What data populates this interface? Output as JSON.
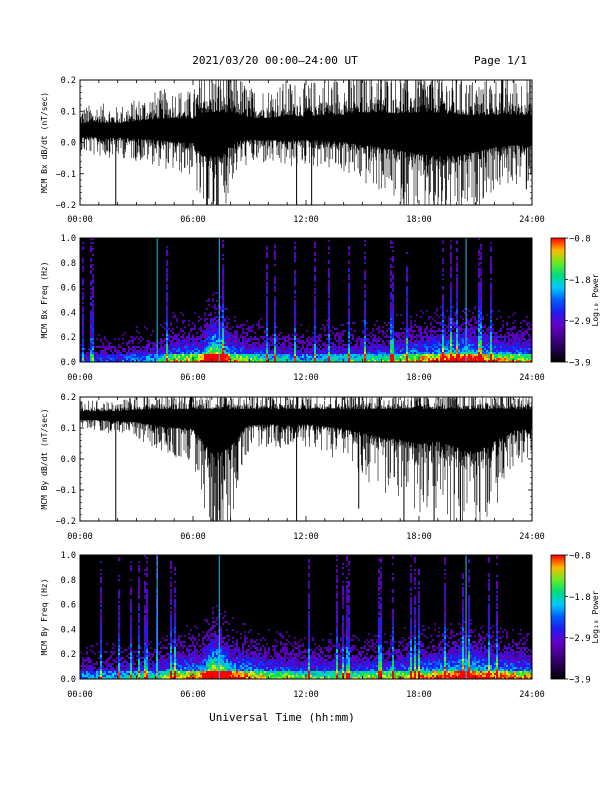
{
  "header": {
    "title": "2021/03/20  00:00–24:00 UT",
    "page": "Page 1/1"
  },
  "xlabel": "Universal Time (hh:mm)",
  "time_ticks": [
    "00:00",
    "06:00",
    "12:00",
    "18:00",
    "24:00"
  ],
  "chart_data": [
    {
      "type": "line",
      "ylabel": "MCM Bx dB/dt (nT/sec)",
      "x_range_hours": [
        0,
        24
      ],
      "ylim": [
        -0.2,
        0.2
      ],
      "yticks": [
        "0.2",
        "0.1",
        "0.0",
        "−0.1",
        "−0.2"
      ],
      "baseline": 0.04,
      "envelope_hours": [
        0,
        1,
        2,
        3,
        4,
        5,
        6,
        6.5,
        7,
        7.5,
        8,
        8.5,
        9,
        10,
        11,
        12,
        13,
        14,
        15,
        16,
        17,
        18,
        19,
        20,
        21,
        22,
        23,
        24
      ],
      "envelope_upper": [
        0.1,
        0.11,
        0.1,
        0.12,
        0.14,
        0.15,
        0.14,
        0.2,
        0.2,
        0.2,
        0.2,
        0.18,
        0.15,
        0.15,
        0.17,
        0.16,
        0.18,
        0.18,
        0.2,
        0.2,
        0.19,
        0.2,
        0.2,
        0.18,
        0.17,
        0.18,
        0.18,
        0.18
      ],
      "envelope_lower": [
        -0.02,
        -0.03,
        -0.03,
        -0.04,
        -0.05,
        -0.07,
        -0.08,
        -0.2,
        -0.2,
        -0.2,
        -0.1,
        -0.06,
        -0.05,
        -0.05,
        -0.06,
        -0.05,
        -0.06,
        -0.07,
        -0.1,
        -0.12,
        -0.15,
        -0.18,
        -0.2,
        -0.2,
        -0.16,
        -0.12,
        -0.1,
        -0.1
      ],
      "spikes": [
        [
          1.9,
          -0.2
        ],
        [
          11.5,
          -0.2
        ],
        [
          12.3,
          -0.2
        ],
        [
          17.2,
          -0.2
        ],
        [
          18.8,
          -0.2
        ],
        [
          23.7,
          -0.15
        ]
      ]
    },
    {
      "type": "heatmap",
      "ylabel": "MCM Bx Freq (Hz)",
      "x_range_hours": [
        0,
        24
      ],
      "ylim": [
        0,
        1.0
      ],
      "yticks": [
        "1.0",
        "0.8",
        "0.6",
        "0.4",
        "0.2",
        "0.0"
      ],
      "colorbar": {
        "label": "Log₁₀ Power",
        "range": [
          -3.9,
          -0.8
        ],
        "ticks": [
          "−0.8",
          "−1.8",
          "−2.9",
          "−3.9"
        ]
      },
      "activity_hours": [
        0,
        2,
        4,
        5,
        6.5,
        7,
        7.5,
        8,
        10,
        12,
        14,
        16,
        18,
        19,
        20.5,
        22,
        24
      ],
      "activity_level": [
        0.25,
        0.3,
        0.4,
        0.55,
        0.6,
        0.95,
        0.85,
        0.6,
        0.45,
        0.4,
        0.45,
        0.5,
        0.6,
        0.65,
        0.75,
        0.6,
        0.55
      ],
      "bright_lines_hours": [
        4.1,
        7.4,
        20.5
      ]
    },
    {
      "type": "line",
      "ylabel": "MCM By dB/dt (nT/sec)",
      "x_range_hours": [
        0,
        24
      ],
      "ylim": [
        -0.2,
        0.2
      ],
      "yticks": [
        "0.2",
        "0.1",
        "0.0",
        "−0.1",
        "−0.2"
      ],
      "baseline": 0.14,
      "envelope_hours": [
        0,
        1,
        2,
        3,
        4,
        5,
        6,
        6.5,
        7,
        7.5,
        8,
        8.5,
        9,
        10,
        11,
        12,
        13,
        14,
        15,
        16,
        17,
        18,
        19,
        20,
        21,
        22,
        23,
        24
      ],
      "envelope_upper": [
        0.18,
        0.18,
        0.18,
        0.19,
        0.2,
        0.2,
        0.2,
        0.2,
        0.2,
        0.2,
        0.2,
        0.2,
        0.2,
        0.2,
        0.2,
        0.2,
        0.2,
        0.2,
        0.2,
        0.2,
        0.2,
        0.2,
        0.2,
        0.2,
        0.2,
        0.2,
        0.2,
        0.2
      ],
      "envelope_lower": [
        0.1,
        0.1,
        0.09,
        0.08,
        0.05,
        0.03,
        0.02,
        -0.1,
        -0.2,
        -0.2,
        -0.15,
        0.0,
        0.05,
        0.06,
        0.05,
        0.06,
        0.04,
        0.02,
        -0.02,
        -0.06,
        -0.08,
        -0.12,
        -0.1,
        -0.15,
        -0.2,
        -0.1,
        0.0,
        0.02
      ],
      "spikes": [
        [
          1.9,
          -0.2
        ],
        [
          11.5,
          -0.2
        ],
        [
          14.8,
          -0.16
        ],
        [
          17.2,
          -0.2
        ],
        [
          18.8,
          -0.2
        ],
        [
          20.2,
          -0.2
        ]
      ]
    },
    {
      "type": "heatmap",
      "ylabel": "MCM By Freq (Hz)",
      "x_range_hours": [
        0,
        24
      ],
      "ylim": [
        0,
        1.0
      ],
      "yticks": [
        "1.0",
        "0.8",
        "0.6",
        "0.4",
        "0.2",
        "0.0"
      ],
      "colorbar": {
        "label": "Log₁₀ Power",
        "range": [
          -3.9,
          -0.8
        ],
        "ticks": [
          "−0.8",
          "−1.8",
          "−2.9",
          "−3.9"
        ]
      },
      "activity_hours": [
        0,
        2,
        4,
        5,
        6.5,
        7,
        7.5,
        8,
        10,
        12,
        14,
        16,
        18,
        19,
        20.5,
        22,
        24
      ],
      "activity_level": [
        0.35,
        0.4,
        0.45,
        0.6,
        0.65,
        0.95,
        0.9,
        0.7,
        0.55,
        0.5,
        0.5,
        0.55,
        0.6,
        0.65,
        0.75,
        0.65,
        0.6
      ],
      "bright_lines_hours": [
        4.1,
        7.4,
        20.5
      ]
    }
  ]
}
